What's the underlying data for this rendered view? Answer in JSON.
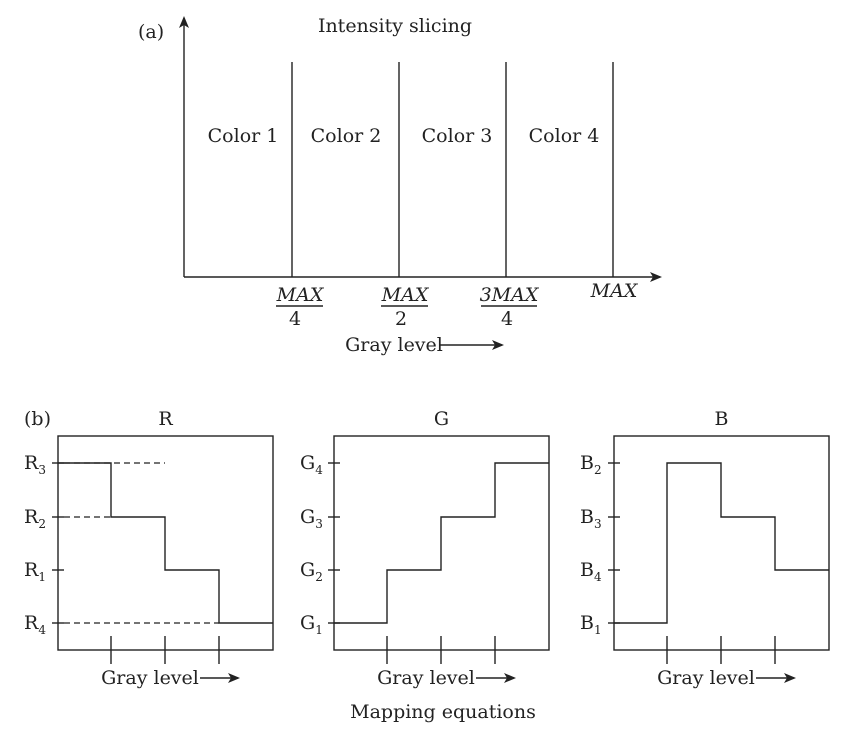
{
  "part_a": {
    "label": "(a)",
    "title": "Intensity slicing",
    "regions": [
      "Color 1",
      "Color 2",
      "Color 3",
      "Color 4"
    ],
    "ticks": [
      {
        "num": "MAX",
        "den": "4"
      },
      {
        "num": "MAX",
        "den": "2"
      },
      {
        "num": "3MAX",
        "den": "4"
      },
      {
        "num": "MAX",
        "den": ""
      }
    ],
    "xlabel": "Gray level"
  },
  "part_b": {
    "label": "(b)",
    "caption": "Mapping equations",
    "panels": [
      {
        "title": "R",
        "xlabel": "Gray level",
        "levels": [
          {
            "base": "R",
            "sub": "3"
          },
          {
            "base": "R",
            "sub": "2"
          },
          {
            "base": "R",
            "sub": "1"
          },
          {
            "base": "R",
            "sub": "4"
          }
        ],
        "steps": [
          3,
          2,
          1,
          4
        ]
      },
      {
        "title": "G",
        "xlabel": "Gray level",
        "levels": [
          {
            "base": "G",
            "sub": "4"
          },
          {
            "base": "G",
            "sub": "3"
          },
          {
            "base": "G",
            "sub": "2"
          },
          {
            "base": "G",
            "sub": "1"
          }
        ],
        "steps": [
          1,
          2,
          3,
          4
        ]
      },
      {
        "title": "B",
        "xlabel": "Gray level",
        "levels": [
          {
            "base": "B",
            "sub": "2"
          },
          {
            "base": "B",
            "sub": "3"
          },
          {
            "base": "B",
            "sub": "4"
          },
          {
            "base": "B",
            "sub": "1"
          }
        ],
        "steps": [
          1,
          2,
          3,
          4
        ]
      }
    ]
  }
}
